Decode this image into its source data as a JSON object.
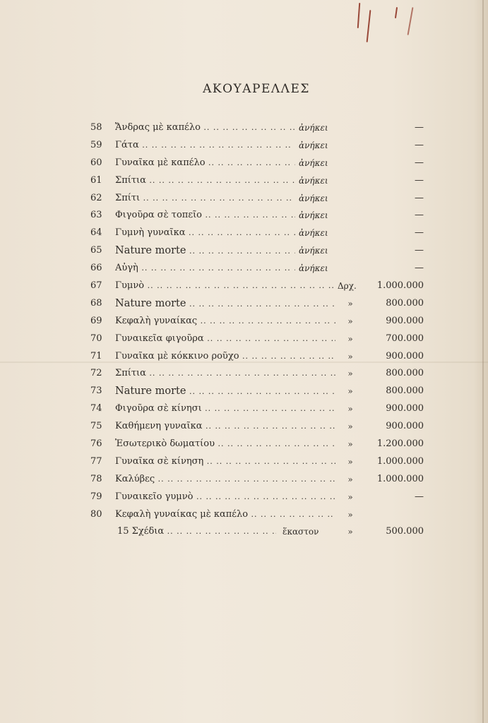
{
  "title": "ΑΚΟΥΑΡΕΛΛΕΣ",
  "owned_rows": [
    {
      "num": "58",
      "title": "Ἄνδρας μὲ καπέλο",
      "status": "ἀνήκει",
      "value": "—"
    },
    {
      "num": "59",
      "title": "Γάτα",
      "status": "ἀνήκει",
      "value": "—"
    },
    {
      "num": "60",
      "title": "Γυναῖκα μὲ καπέλο",
      "status": "ἀνήκει",
      "value": "—"
    },
    {
      "num": "61",
      "title": "Σπίτια",
      "status": "ἀνήκει",
      "value": "—"
    },
    {
      "num": "62",
      "title": "Σπίτι",
      "status": "ἀνήκει",
      "value": "—"
    },
    {
      "num": "63",
      "title": "Φιγοῦρα σὲ τοπεῖο",
      "status": "ἀνήκει",
      "value": "—"
    },
    {
      "num": "64",
      "title": "Γυμνὴ γυναῖκα",
      "status": "ἀνήκει",
      "value": "—"
    },
    {
      "num": "65",
      "title": "Nature morte",
      "status": "ἀνήκει",
      "value": "—"
    },
    {
      "num": "66",
      "title": "Αὐγὴ",
      "status": "ἀνήκει",
      "value": "—"
    }
  ],
  "priced_rows": [
    {
      "num": "67",
      "title": "Γυμνὸ",
      "currency": "Δρχ.",
      "value": "1.000.000"
    },
    {
      "num": "68",
      "title": "Nature morte",
      "currency": "»",
      "value": "800.000"
    },
    {
      "num": "69",
      "title": "Κεφαλὴ γυναίκας",
      "currency": "»",
      "value": "900.000"
    },
    {
      "num": "70",
      "title": "Γυναικεῖα φιγοῦρα",
      "currency": "»",
      "value": "700.000"
    },
    {
      "num": "71",
      "title": "Γυναῖκα μὲ κόκκινο ροῦχο",
      "currency": "»",
      "value": "900.000"
    },
    {
      "num": "72",
      "title": "Σπίτια",
      "currency": "»",
      "value": "800.000"
    },
    {
      "num": "73",
      "title": "Nature morte",
      "currency": "»",
      "value": "800.000"
    },
    {
      "num": "74",
      "title": "Φιγοῦρα σὲ κίνησι",
      "currency": "»",
      "value": "900.000"
    },
    {
      "num": "75",
      "title": "Καθήμενη γυναῖκα",
      "currency": "»",
      "value": "900.000"
    },
    {
      "num": "76",
      "title": "Ἐσωτερικὸ δωματίου",
      "currency": "»",
      "value": "1.200.000"
    },
    {
      "num": "77",
      "title": "Γυναῖκα σὲ κίνηση",
      "currency": "»",
      "value": "1.000.000"
    },
    {
      "num": "78",
      "title": "Καλύβες",
      "currency": "»",
      "value": "1.000.000"
    },
    {
      "num": "79",
      "title": "Γυναικεῖο γυμνὸ",
      "currency": "»",
      "value": "—"
    },
    {
      "num": "80",
      "title": "Κεφαλὴ γυναίκας μὲ καπέλο",
      "currency": "»",
      "value": ""
    }
  ],
  "sketches": {
    "title": "15 Σχέδια",
    "each": "ἕκαστον",
    "currency": "»",
    "value": "500.000"
  }
}
